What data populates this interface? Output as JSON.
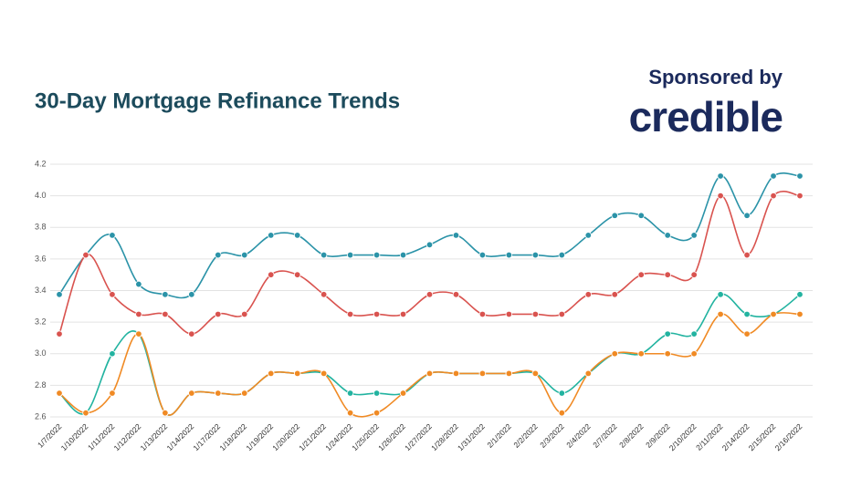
{
  "chart_data": {
    "type": "line",
    "title": "30-Day Mortgage Refinance Trends",
    "sponsor_label": "Sponsored by",
    "sponsor_name": "credible",
    "categories": [
      "1/7/2022",
      "1/10/2022",
      "1/11/2022",
      "1/12/2022",
      "1/13/2022",
      "1/14/2022",
      "1/17/2022",
      "1/18/2022",
      "1/19/2022",
      "1/20/2022",
      "1/21/2022",
      "1/24/2022",
      "1/25/2022",
      "1/26/2022",
      "1/27/2022",
      "1/28/2022",
      "1/31/2022",
      "2/1/2022",
      "2/2/2022",
      "2/3/2022",
      "2/4/2022",
      "2/7/2022",
      "2/8/2022",
      "2/9/2022",
      "2/10/2022",
      "2/11/2022",
      "2/14/2022",
      "2/15/2022",
      "2/16/2022"
    ],
    "series": [
      {
        "color": "#2b93a8",
        "values": [
          3.375,
          3.625,
          3.75,
          3.44,
          3.375,
          3.375,
          3.625,
          3.625,
          3.75,
          3.75,
          3.625,
          3.625,
          3.625,
          3.625,
          3.69,
          3.75,
          3.625,
          3.625,
          3.625,
          3.625,
          3.75,
          3.875,
          3.875,
          3.75,
          3.75,
          4.125,
          3.875,
          4.125,
          4.125
        ]
      },
      {
        "color": "#d9534f",
        "values": [
          3.125,
          3.625,
          3.375,
          3.25,
          3.25,
          3.125,
          3.25,
          3.25,
          3.5,
          3.5,
          3.375,
          3.25,
          3.25,
          3.25,
          3.375,
          3.375,
          3.25,
          3.25,
          3.25,
          3.25,
          3.375,
          3.375,
          3.5,
          3.5,
          3.5,
          4.0,
          3.625,
          4.0,
          4.0
        ]
      },
      {
        "color": "#22b3a0",
        "values": [
          2.75,
          2.625,
          3.0,
          3.125,
          2.625,
          2.75,
          2.75,
          2.75,
          2.875,
          2.875,
          2.875,
          2.75,
          2.75,
          2.75,
          2.875,
          2.875,
          2.875,
          2.875,
          2.875,
          2.75,
          2.875,
          3.0,
          3.0,
          3.125,
          3.125,
          3.375,
          3.25,
          3.25,
          3.375
        ]
      },
      {
        "color": "#f08a24",
        "values": [
          2.75,
          2.625,
          2.75,
          3.125,
          2.625,
          2.75,
          2.75,
          2.75,
          2.875,
          2.875,
          2.875,
          2.625,
          2.625,
          2.75,
          2.875,
          2.875,
          2.875,
          2.875,
          2.875,
          2.625,
          2.875,
          3.0,
          3.0,
          3.0,
          3.0,
          3.25,
          3.125,
          3.25,
          3.25
        ]
      }
    ],
    "ylim": [
      2.6,
      4.2
    ],
    "yticks": [
      2.6,
      2.8,
      {
        "value": 3.0,
        "label": "3.0"
      },
      3.2,
      3.4,
      3.6,
      3.8,
      {
        "value": 4.0,
        "label": "4.0"
      },
      4.2
    ],
    "grid": true
  }
}
